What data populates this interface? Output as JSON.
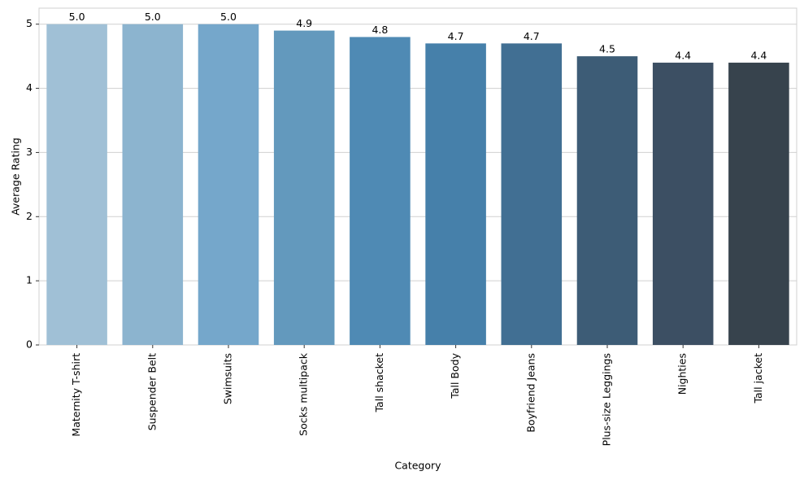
{
  "chart_data": {
    "type": "bar",
    "x_label": "Category",
    "y_label": "Average Rating",
    "categories": [
      "Maternity T-shirt",
      "Suspender Belt",
      "Swimsuits",
      "Socks multipack",
      "Tall shacket",
      "Tall Body",
      "Boyfriend Jeans",
      "Plus-size Leggings",
      "Nighties",
      "Tall jacket"
    ],
    "values": [
      5.0,
      5.0,
      5.0,
      4.9,
      4.8,
      4.7,
      4.7,
      4.5,
      4.4,
      4.4
    ],
    "value_labels": [
      "5.0",
      "5.0",
      "5.0",
      "4.9",
      "4.8",
      "4.7",
      "4.7",
      "4.5",
      "4.4",
      "4.4"
    ],
    "colors": [
      "#a0c0d6",
      "#8cb4cf",
      "#75a7cb",
      "#6399bd",
      "#4f8ab4",
      "#4680aa",
      "#416f93",
      "#3d5c76",
      "#3c4f63",
      "#37434d"
    ],
    "ylim": [
      0,
      5.25
    ],
    "yticks": [
      0,
      1,
      2,
      3,
      4,
      5
    ],
    "grid": true
  }
}
